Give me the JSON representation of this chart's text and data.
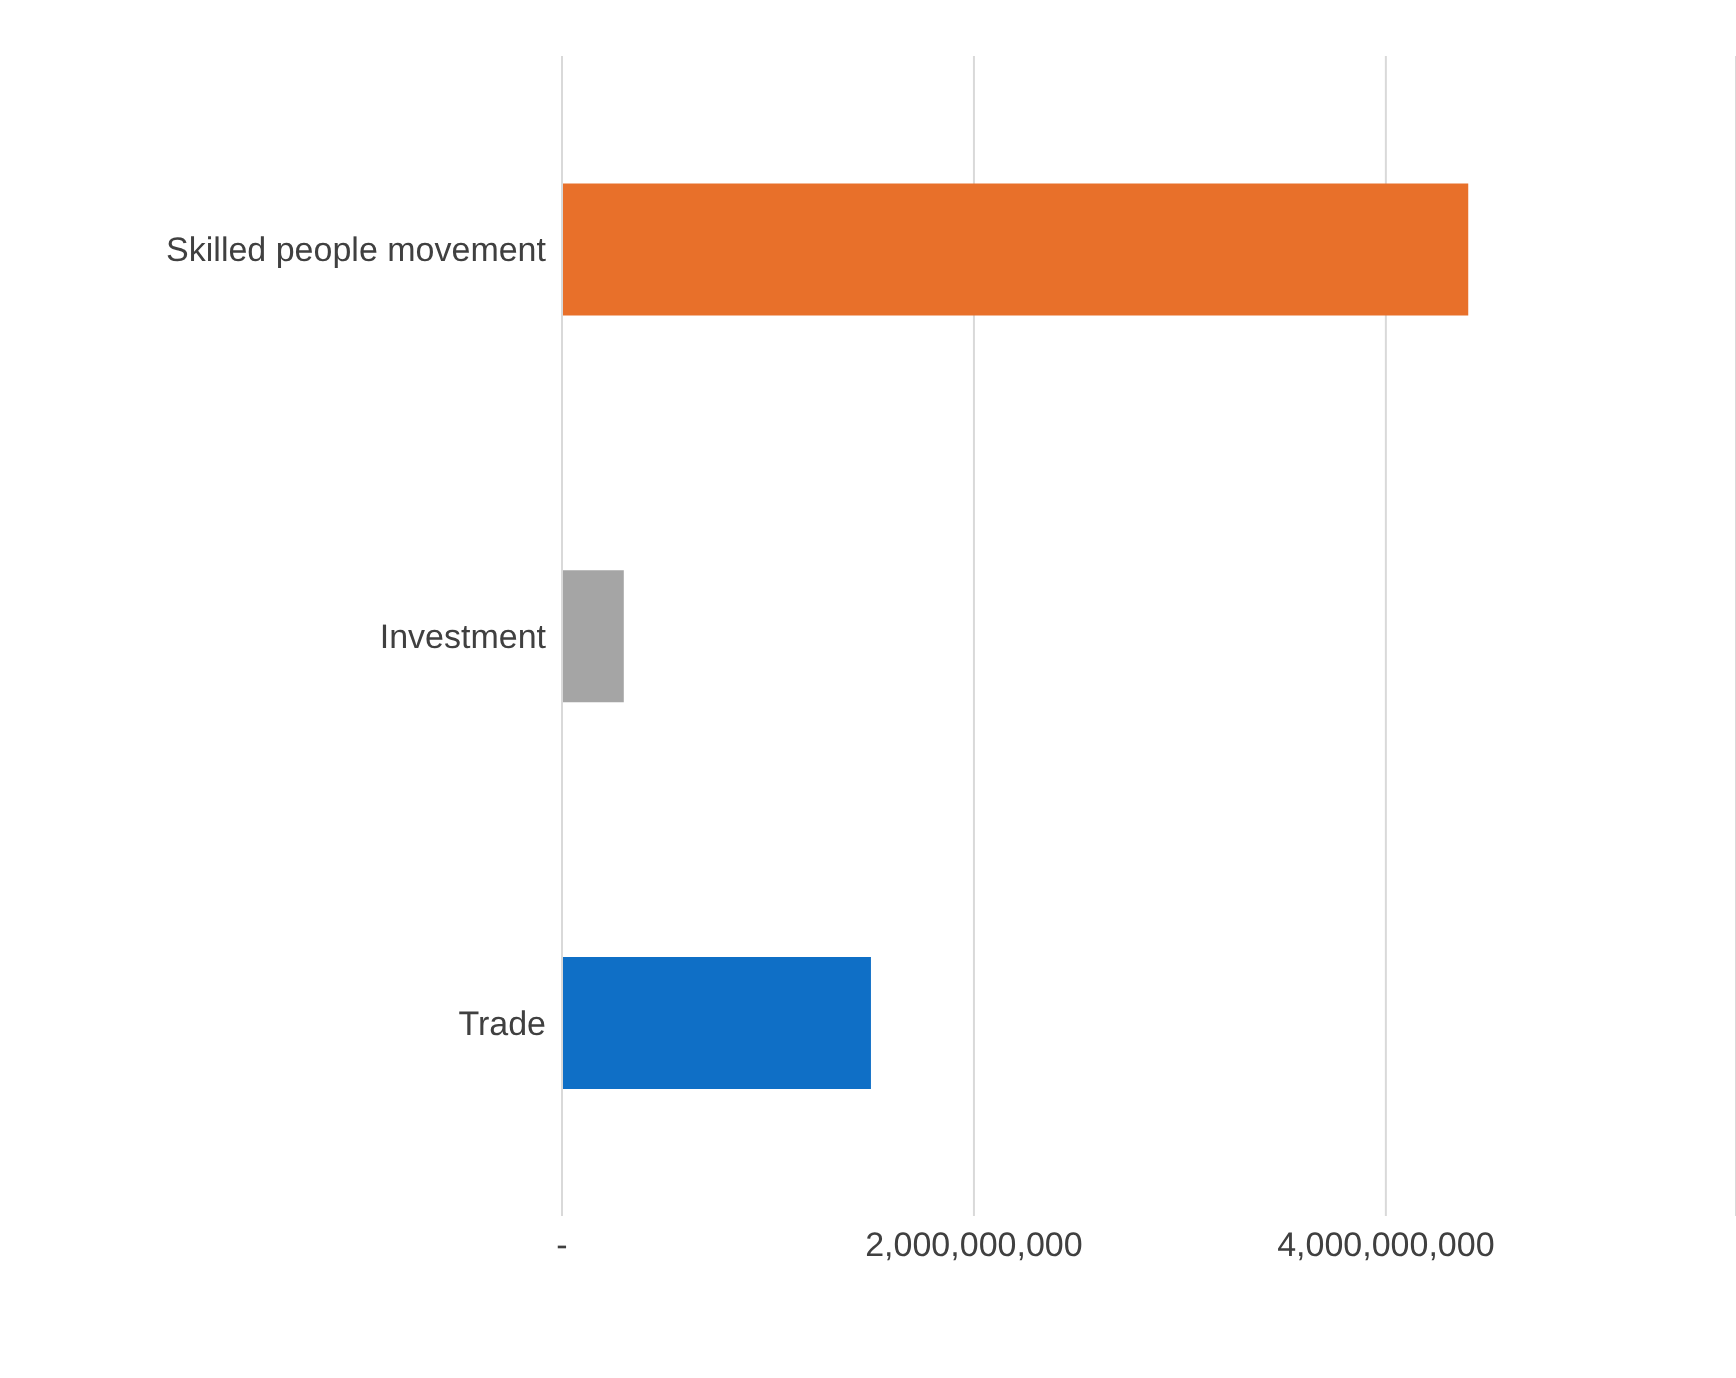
{
  "chart_data": {
    "type": "bar",
    "orientation": "horizontal",
    "categories": [
      "Skilled people movement",
      "Investment",
      "Trade"
    ],
    "values": [
      4400000000,
      300000000,
      1500000000
    ],
    "colors": [
      "#e8702a",
      "#a5a5a5",
      "#0f6fc6"
    ],
    "xlim": [
      0,
      5700000000
    ],
    "xticks": [
      {
        "value": 0,
        "label": "-"
      },
      {
        "value": 2000000000,
        "label": "2,000,000,000"
      },
      {
        "value": 4000000000,
        "label": "4,000,000,000"
      }
    ],
    "grid": "x"
  }
}
